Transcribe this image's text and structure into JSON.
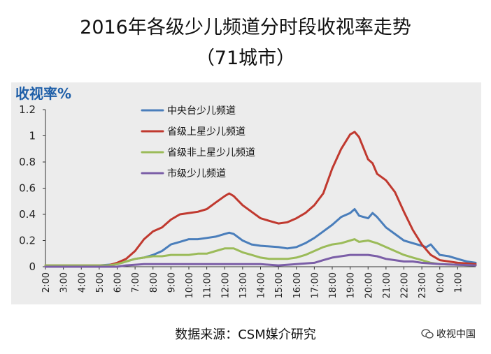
{
  "title": {
    "line1": "2016年各级少儿频道分时段收视率走势",
    "line2": "（71城市）"
  },
  "source": "数据来源：CSM媒介研究",
  "watermark": "收视中国",
  "watermark_icon": "wechat-icon",
  "chart_data": {
    "type": "line",
    "ylabel": "收视率%",
    "xlabel": "",
    "ylim": [
      0,
      1.2
    ],
    "yticks": [
      0,
      0.2,
      0.4,
      0.6,
      0.8,
      1,
      1.2
    ],
    "ytick_labels": [
      "0",
      "0.2",
      "0.4",
      "0.6",
      "0.8",
      "1",
      "1.2"
    ],
    "xtick_labels": [
      "2:00",
      "3:00",
      "4:00",
      "5:00",
      "6:00",
      "7:00",
      "8:00",
      "9:00",
      "10:00",
      "11:00",
      "12:00",
      "13:00",
      "14:00",
      "15:00",
      "16:00",
      "17:00",
      "18:00",
      "19:00",
      "20:00",
      "21:00",
      "22:00",
      "23:00",
      "0:00",
      "1:00"
    ],
    "x_start_hour": 2,
    "x_end_hour": 26,
    "grid": false,
    "legend_position": "top-left",
    "series": [
      {
        "name": "中央台少儿频道",
        "color": "#4a7ebb",
        "points": [
          [
            2,
            0.01
          ],
          [
            5,
            0.01
          ],
          [
            6,
            0.02
          ],
          [
            6.5,
            0.04
          ],
          [
            7,
            0.06
          ],
          [
            7.5,
            0.07
          ],
          [
            8,
            0.09
          ],
          [
            8.5,
            0.12
          ],
          [
            9,
            0.17
          ],
          [
            9.5,
            0.19
          ],
          [
            10,
            0.21
          ],
          [
            10.5,
            0.21
          ],
          [
            11,
            0.22
          ],
          [
            11.5,
            0.23
          ],
          [
            12,
            0.25
          ],
          [
            12.25,
            0.26
          ],
          [
            12.5,
            0.25
          ],
          [
            13,
            0.2
          ],
          [
            13.5,
            0.17
          ],
          [
            14,
            0.16
          ],
          [
            15,
            0.15
          ],
          [
            15.5,
            0.14
          ],
          [
            16,
            0.15
          ],
          [
            16.5,
            0.18
          ],
          [
            17,
            0.22
          ],
          [
            17.5,
            0.27
          ],
          [
            18,
            0.32
          ],
          [
            18.5,
            0.38
          ],
          [
            19,
            0.41
          ],
          [
            19.25,
            0.44
          ],
          [
            19.5,
            0.39
          ],
          [
            20,
            0.37
          ],
          [
            20.25,
            0.41
          ],
          [
            20.5,
            0.38
          ],
          [
            21,
            0.3
          ],
          [
            21.5,
            0.25
          ],
          [
            22,
            0.2
          ],
          [
            22.5,
            0.18
          ],
          [
            23,
            0.16
          ],
          [
            23.25,
            0.15
          ],
          [
            23.5,
            0.17
          ],
          [
            24,
            0.09
          ],
          [
            24.5,
            0.08
          ],
          [
            25,
            0.06
          ],
          [
            25.5,
            0.04
          ],
          [
            26,
            0.03
          ]
        ]
      },
      {
        "name": "省级上星少儿频道",
        "color": "#c0392f",
        "points": [
          [
            2,
            0.01
          ],
          [
            5.5,
            0.01
          ],
          [
            6,
            0.03
          ],
          [
            6.5,
            0.06
          ],
          [
            7,
            0.12
          ],
          [
            7.5,
            0.21
          ],
          [
            8,
            0.27
          ],
          [
            8.5,
            0.3
          ],
          [
            9,
            0.36
          ],
          [
            9.5,
            0.4
          ],
          [
            10,
            0.41
          ],
          [
            10.5,
            0.42
          ],
          [
            11,
            0.44
          ],
          [
            11.5,
            0.49
          ],
          [
            12,
            0.54
          ],
          [
            12.25,
            0.56
          ],
          [
            12.5,
            0.54
          ],
          [
            13,
            0.47
          ],
          [
            13.5,
            0.42
          ],
          [
            14,
            0.37
          ],
          [
            14.5,
            0.35
          ],
          [
            15,
            0.33
          ],
          [
            15.5,
            0.34
          ],
          [
            16,
            0.37
          ],
          [
            16.5,
            0.41
          ],
          [
            17,
            0.47
          ],
          [
            17.5,
            0.56
          ],
          [
            18,
            0.75
          ],
          [
            18.5,
            0.9
          ],
          [
            19,
            1.01
          ],
          [
            19.25,
            1.03
          ],
          [
            19.5,
            0.99
          ],
          [
            20,
            0.82
          ],
          [
            20.25,
            0.79
          ],
          [
            20.5,
            0.71
          ],
          [
            21,
            0.66
          ],
          [
            21.5,
            0.57
          ],
          [
            22,
            0.42
          ],
          [
            22.5,
            0.28
          ],
          [
            23,
            0.17
          ],
          [
            23.5,
            0.09
          ],
          [
            24,
            0.05
          ],
          [
            25,
            0.03
          ],
          [
            26,
            0.02
          ]
        ]
      },
      {
        "name": "省级非上星少儿频道",
        "color": "#9bbb59",
        "points": [
          [
            2,
            0.01
          ],
          [
            5.5,
            0.01
          ],
          [
            6,
            0.02
          ],
          [
            6.5,
            0.04
          ],
          [
            7,
            0.06
          ],
          [
            7.5,
            0.07
          ],
          [
            8,
            0.08
          ],
          [
            8.5,
            0.08
          ],
          [
            9,
            0.09
          ],
          [
            10,
            0.09
          ],
          [
            10.5,
            0.1
          ],
          [
            11,
            0.1
          ],
          [
            11.5,
            0.12
          ],
          [
            12,
            0.14
          ],
          [
            12.5,
            0.14
          ],
          [
            13,
            0.11
          ],
          [
            13.5,
            0.09
          ],
          [
            14,
            0.07
          ],
          [
            14.5,
            0.06
          ],
          [
            15,
            0.06
          ],
          [
            15.5,
            0.06
          ],
          [
            16,
            0.07
          ],
          [
            16.5,
            0.09
          ],
          [
            17,
            0.12
          ],
          [
            17.5,
            0.15
          ],
          [
            18,
            0.17
          ],
          [
            18.5,
            0.18
          ],
          [
            19,
            0.2
          ],
          [
            19.25,
            0.21
          ],
          [
            19.5,
            0.19
          ],
          [
            20,
            0.2
          ],
          [
            20.5,
            0.18
          ],
          [
            21,
            0.15
          ],
          [
            21.5,
            0.12
          ],
          [
            22,
            0.09
          ],
          [
            22.5,
            0.07
          ],
          [
            23,
            0.05
          ],
          [
            23.5,
            0.03
          ],
          [
            24,
            0.02
          ],
          [
            26,
            0.01
          ]
        ]
      },
      {
        "name": "市级少儿频道",
        "color": "#7b5ea7",
        "points": [
          [
            2,
            0
          ],
          [
            6,
            0
          ],
          [
            6.5,
            0.01
          ],
          [
            7.5,
            0.02
          ],
          [
            10,
            0.02
          ],
          [
            12,
            0.02
          ],
          [
            14,
            0.02
          ],
          [
            15,
            0.01
          ],
          [
            16,
            0.02
          ],
          [
            17,
            0.03
          ],
          [
            17.5,
            0.05
          ],
          [
            18,
            0.07
          ],
          [
            18.5,
            0.08
          ],
          [
            19,
            0.09
          ],
          [
            19.5,
            0.09
          ],
          [
            20,
            0.09
          ],
          [
            20.5,
            0.08
          ],
          [
            21,
            0.06
          ],
          [
            21.5,
            0.05
          ],
          [
            22,
            0.04
          ],
          [
            22.5,
            0.04
          ],
          [
            23,
            0.03
          ],
          [
            24,
            0.02
          ],
          [
            26,
            0.01
          ]
        ]
      }
    ]
  }
}
